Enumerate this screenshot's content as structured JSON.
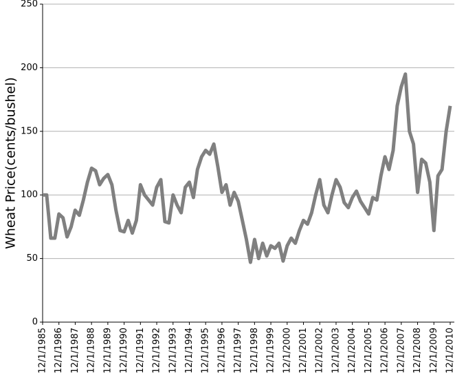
{
  "chart_data": {
    "type": "line",
    "y_label": "Wheat Price(cents/bushel)",
    "categories": [
      "12/1/1985",
      null,
      null,
      null,
      "12/1/1986",
      null,
      null,
      null,
      "12/1/1987",
      null,
      null,
      null,
      "12/1/1988",
      null,
      null,
      null,
      "12/1/1989",
      null,
      null,
      null,
      "12/1/1990",
      null,
      null,
      null,
      "12/1/1991",
      null,
      null,
      null,
      "12/1/1992",
      null,
      null,
      null,
      "12/1/1993",
      null,
      null,
      null,
      "12/1/1994",
      null,
      null,
      null,
      "12/1/1995",
      null,
      null,
      null,
      "12/1/1996",
      null,
      null,
      null,
      "12/1/1997",
      null,
      null,
      null,
      "12/1/1998",
      null,
      null,
      null,
      "12/1/1999",
      null,
      null,
      null,
      "12/1/2000",
      null,
      null,
      null,
      "12/1/2001",
      null,
      null,
      null,
      "12/1/2002",
      null,
      null,
      null,
      "12/1/2003",
      null,
      null,
      null,
      "12/1/2004",
      null,
      null,
      null,
      "12/1/2005",
      null,
      null,
      null,
      "12/1/2006",
      null,
      null,
      null,
      "12/1/2007",
      null,
      null,
      null,
      "12/1/2008",
      null,
      null,
      null,
      "12/1/2009",
      null,
      null,
      null,
      "12/1/2010"
    ],
    "series": [
      {
        "name": "Wheat Price",
        "color": "#808080",
        "values": [
          100,
          100,
          66,
          66,
          85,
          82,
          67,
          75,
          88,
          84,
          96,
          110,
          121,
          119,
          108,
          113,
          116,
          108,
          88,
          72,
          71,
          80,
          70,
          80,
          108,
          100,
          96,
          92,
          106,
          112,
          79,
          78,
          100,
          92,
          86,
          106,
          110,
          98,
          120,
          130,
          135,
          132,
          140,
          122,
          102,
          108,
          92,
          102,
          95,
          80,
          65,
          47,
          65,
          50,
          62,
          52,
          60,
          58,
          62,
          48,
          60,
          66,
          62,
          72,
          80,
          77,
          86,
          100,
          112,
          92,
          86,
          100,
          112,
          106,
          94,
          90,
          98,
          103,
          95,
          90,
          85,
          98,
          96,
          115,
          130,
          120,
          135,
          170,
          185,
          195,
          150,
          140,
          102,
          128,
          125,
          110,
          72,
          115,
          120,
          150,
          170
        ]
      }
    ],
    "ylim": [
      0,
      250
    ],
    "yticks": [
      0,
      50,
      100,
      150,
      200,
      250
    ],
    "grid": true
  }
}
